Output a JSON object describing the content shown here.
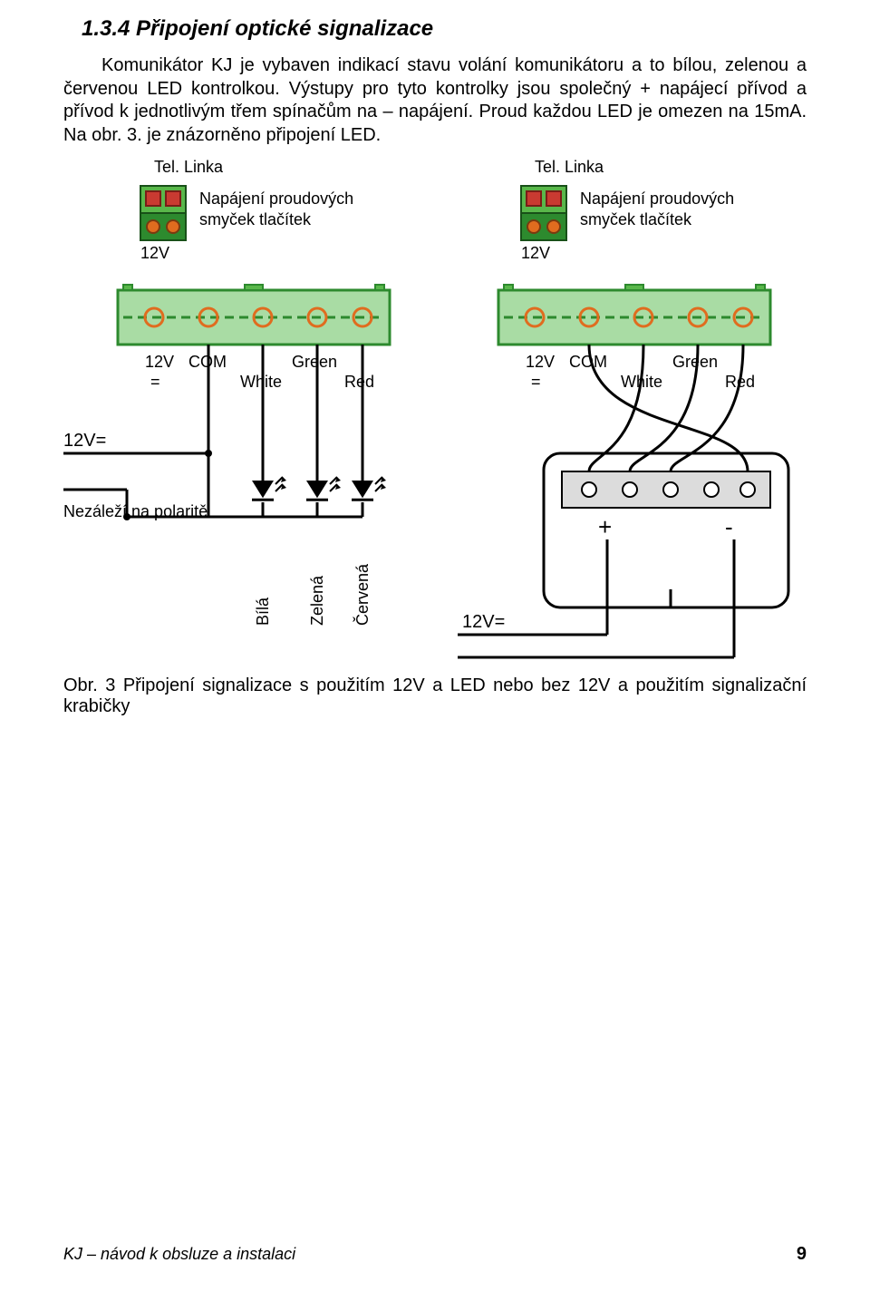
{
  "heading": "1.3.4 Připojení optické signalizace",
  "paragraph": "Komunikátor KJ je vybaven indikací stavu volání komunikátoru a to bílou, zelenou a červenou LED kontrolkou. Výstupy pro tyto kontrolky jsou společný + napájecí přívod a přívod k jednotlivým třem spínačům na – napájení. Proud každou LED je omezen na 15mA. Na obr. 3. je znázorněno připojení LED.",
  "caption": "Obr. 3   Připojení signalizace s použitím 12V a LED nebo bez 12V a použitím signalizační krabičky",
  "footer_left": "KJ – návod k obsluze a instalaci",
  "footer_page": "9",
  "diagram": {
    "labels": {
      "tel_linka": "Tel. Linka",
      "napajeni_line1": "Napájení proudových",
      "napajeni_line2": "smyček tlačítek",
      "v12": "12V",
      "v12eq": "12V=",
      "v12eqshort": "12V",
      "eq": "=",
      "com": "COM",
      "white": "White",
      "green": "Green",
      "red": "Red",
      "plus": "+",
      "minus": "-",
      "nezalezi": "Nezáleží na polaritě",
      "bila": "Bílá",
      "zelena": "Zelená",
      "cervena": "Červená"
    },
    "colors": {
      "green_dark": "#2d8a2e",
      "green_mid": "#59b74a",
      "green_light": "#a9dca4",
      "orange": "#e06c1f",
      "red": "#c93a31",
      "black": "#000000",
      "grey": "#6e6e6e",
      "ltgrey": "#dcdcdc",
      "box_stroke": "#000000",
      "box_fill": "#ffffff"
    }
  }
}
